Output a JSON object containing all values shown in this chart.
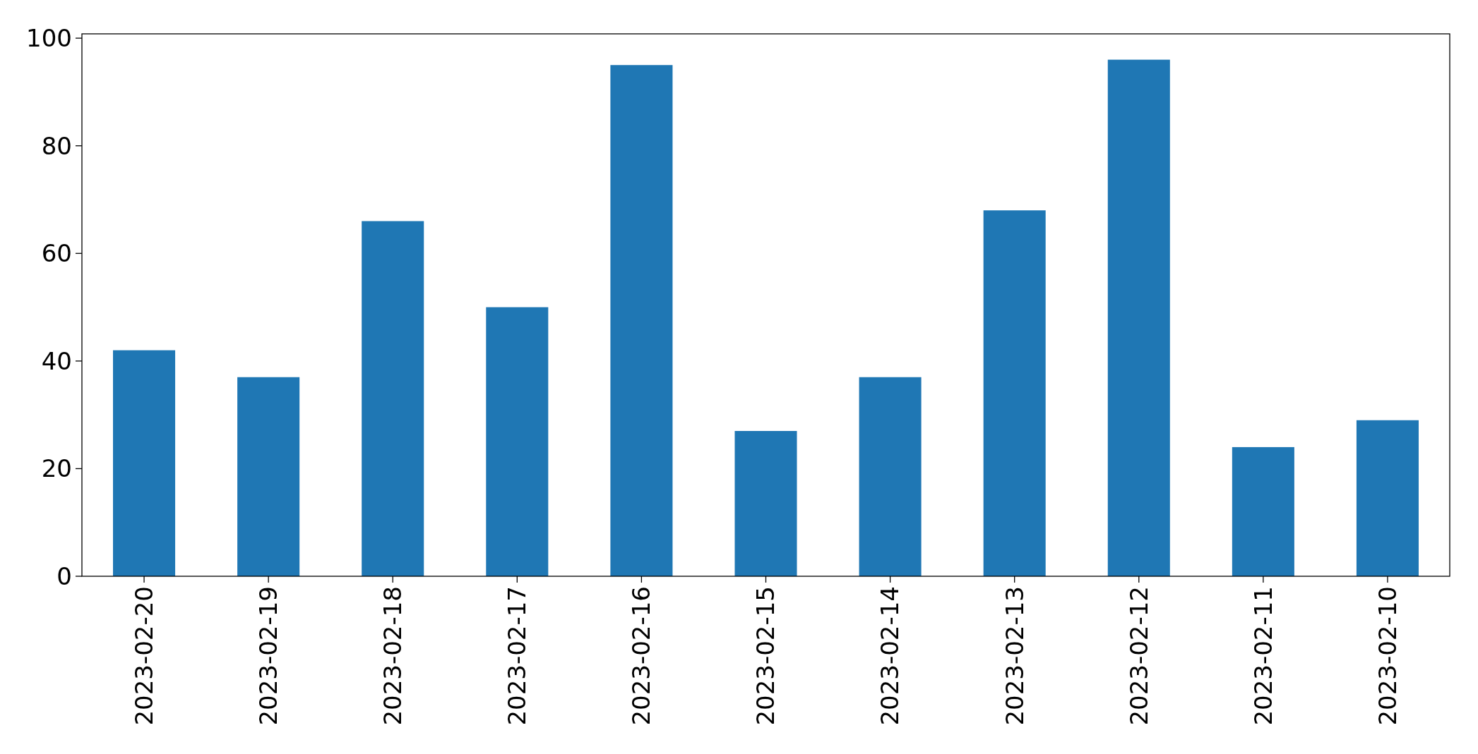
{
  "chart_data": {
    "type": "bar",
    "categories": [
      "2023-02-20",
      "2023-02-19",
      "2023-02-18",
      "2023-02-17",
      "2023-02-16",
      "2023-02-15",
      "2023-02-14",
      "2023-02-13",
      "2023-02-12",
      "2023-02-11",
      "2023-02-10"
    ],
    "values": [
      42,
      37,
      66,
      50,
      95,
      27,
      37,
      68,
      96,
      24,
      29
    ],
    "color": "#1f77b4",
    "ylim": [
      0,
      100.8
    ],
    "yticks": [
      0,
      20,
      40,
      60,
      80,
      100
    ]
  }
}
